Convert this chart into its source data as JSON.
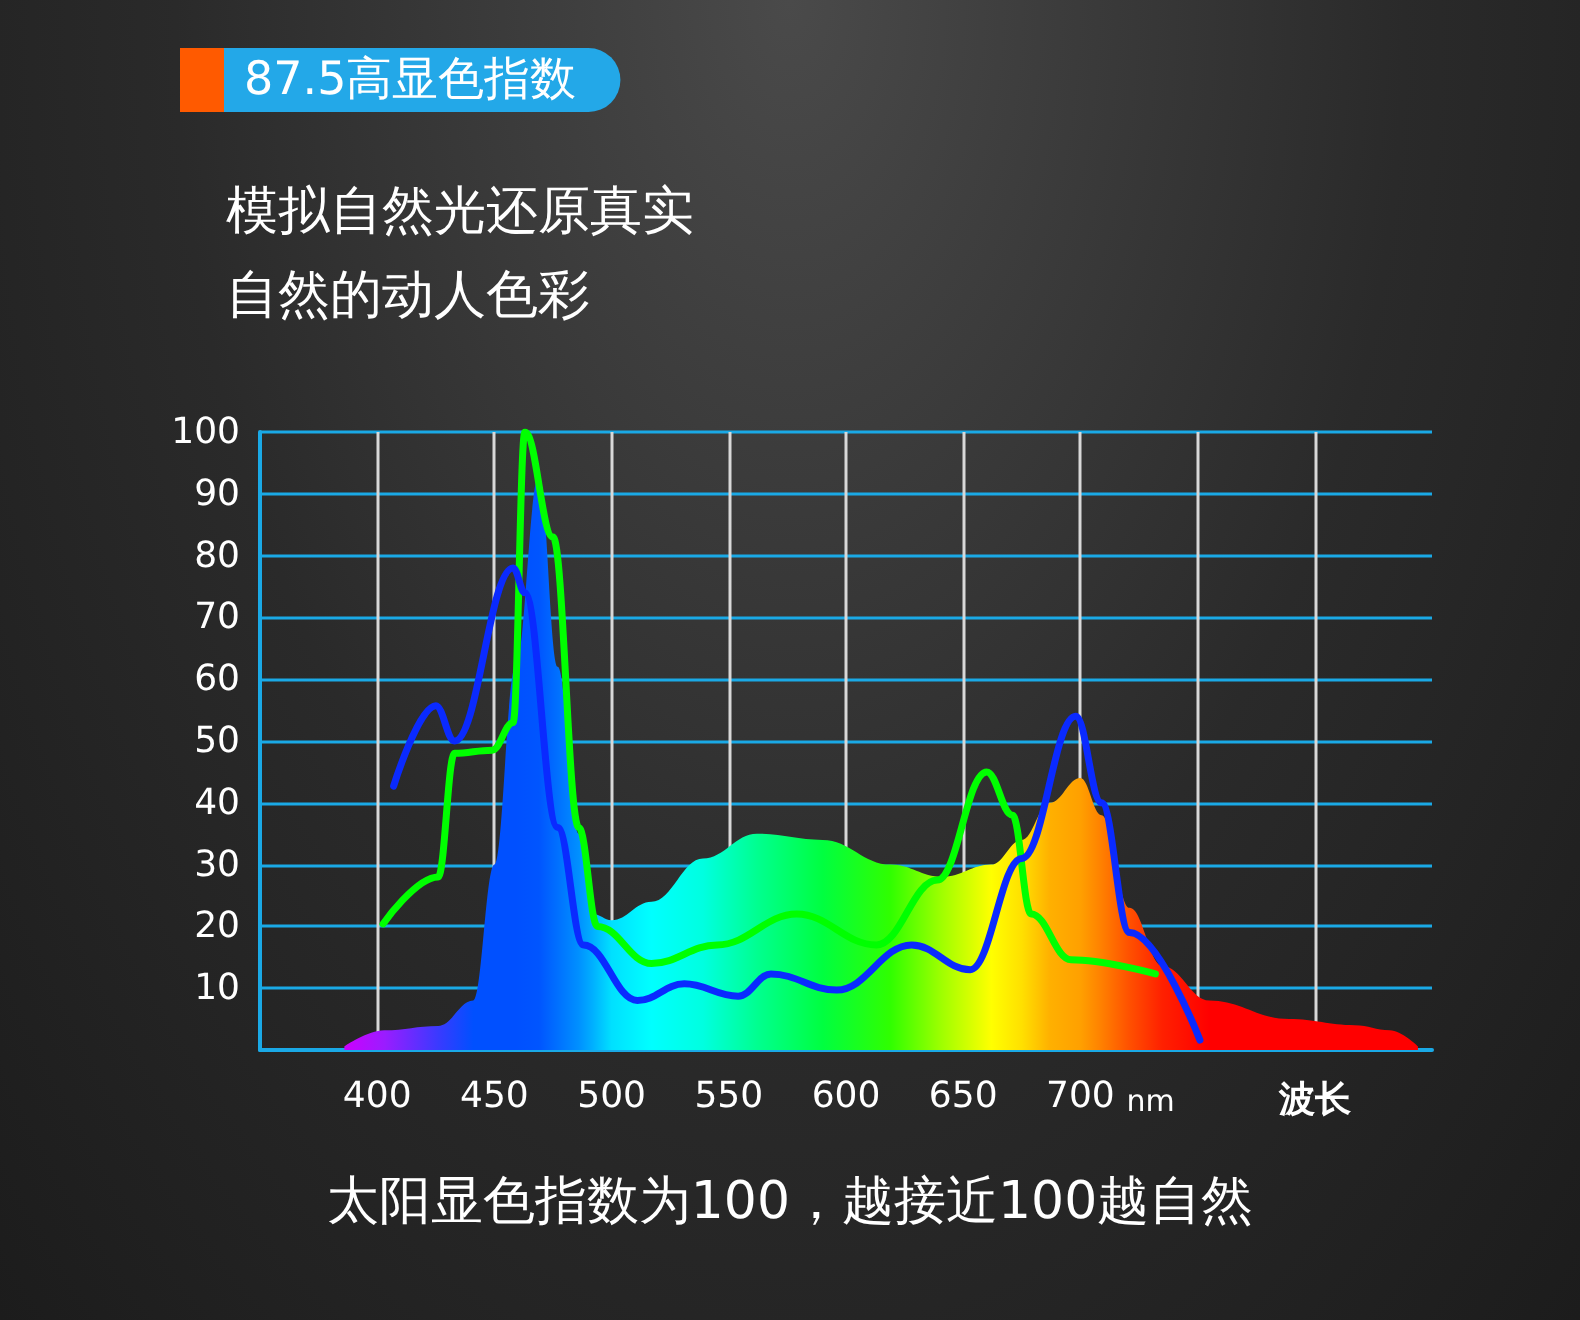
{
  "chart_data": {
    "type": "area",
    "title": "87.5高显色指数",
    "subtitle": "模拟自然光还原真实自然的动人色彩",
    "xlabel": "波长",
    "annotations": [
      "nm",
      "太阳显色指数为100，越接近100越自然"
    ],
    "xlim": [
      350,
      850
    ],
    "xticks": [
      400,
      450,
      500,
      550,
      600,
      650,
      700,
      {
        "value": 750,
        "label": null
      },
      {
        "value": 800,
        "label": null
      }
    ],
    "ylim": [
      0,
      100
    ],
    "yticks": [
      {
        "value": 0,
        "label": null
      },
      10,
      20,
      30,
      40,
      50,
      60,
      70,
      80,
      90,
      100
    ],
    "grid": true,
    "marker": "none",
    "line_style": "solid",
    "series": [
      {
        "x": [
          386,
          403,
          426,
          441,
          450,
          459,
          469,
          477,
          486,
          492,
          500,
          517,
          539,
          562,
          590,
          619,
          641,
          662,
          675,
          687,
          700,
          709,
          721,
          735,
          755,
          789,
          817,
          832,
          844
        ],
        "values": [
          0.6,
          3.2,
          3.9,
          8,
          30,
          62,
          93,
          62,
          35,
          22,
          21,
          24,
          31,
          35,
          34,
          30,
          28,
          30,
          34,
          40,
          44,
          38,
          23,
          13.6,
          8,
          5,
          4,
          3.2,
          0.6
        ],
        "colors": [
          "#cc00ff",
          "#9b1cff",
          "#3a3aff",
          "#0050ff",
          "#0050ff",
          "#0050ff",
          "#0055ff",
          "#0070ff",
          "#0090ff",
          "#00b0ff",
          "#00e0ff",
          "#00ffff",
          "#00ffe0",
          "#00ff90",
          "#00ff40",
          "#30ff00",
          "#a0ff00",
          "#ffff00",
          "#ffe000",
          "#ffb000",
          "#ffa000",
          "#ff8000",
          "#ff5000",
          "#ff2000",
          "#ff0000",
          "#ff0000",
          "#ff0000",
          "#ff0000",
          "#ff0000"
        ]
      },
      {
        "type": "line",
        "color": "#00ff00",
        "x": [
          402.5,
          426,
          433,
          449,
          458,
          463,
          475,
          486,
          494,
          517,
          545,
          579,
          613,
          639,
          660,
          671,
          679,
          696,
          732
        ],
        "values": [
          20.4,
          28,
          48,
          48.5,
          53,
          100,
          83,
          36,
          20,
          14,
          17,
          22,
          17,
          27.5,
          45,
          38,
          22,
          14.6,
          12.3
        ]
      },
      {
        "type": "line",
        "color": "#0a2aff",
        "x": [
          407,
          425,
          433,
          458,
          463,
          477,
          488,
          511,
          531,
          554,
          568,
          596,
          628,
          653,
          675,
          698,
          709,
          721,
          751
        ],
        "values": [
          42.7,
          55.7,
          50,
          78,
          74,
          36,
          17,
          8,
          10.7,
          8.7,
          12.3,
          9.7,
          17,
          13,
          31,
          54,
          40,
          19,
          1.6
        ]
      }
    ]
  }
}
